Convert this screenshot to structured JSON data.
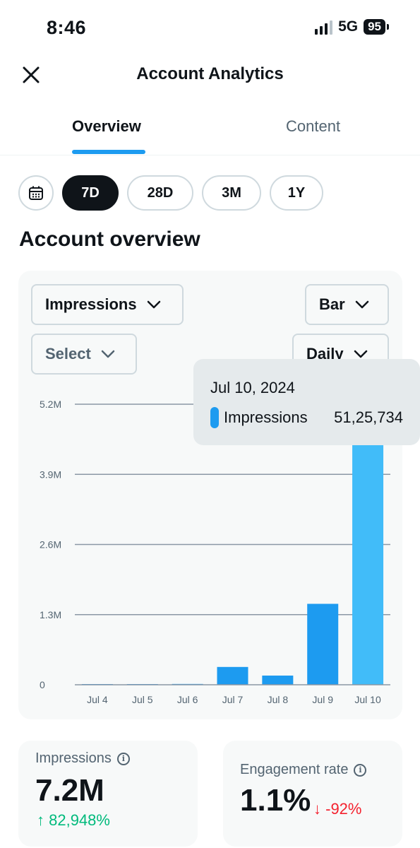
{
  "status": {
    "time": "8:46",
    "network": "5G",
    "battery": "95"
  },
  "header": {
    "title": "Account Analytics",
    "close_icon": "close-icon"
  },
  "tabs": [
    {
      "label": "Overview",
      "active": true
    },
    {
      "label": "Content",
      "active": false
    }
  ],
  "range_chips": [
    {
      "label": "7D",
      "active": true
    },
    {
      "label": "28D",
      "active": false
    },
    {
      "label": "3M",
      "active": false
    },
    {
      "label": "1Y",
      "active": false
    }
  ],
  "section_title": "Account overview",
  "controls": {
    "metric": "Impressions",
    "chart_type": "Bar",
    "compare": "Select",
    "interval": "Daily"
  },
  "chart_data": {
    "type": "bar",
    "categories": [
      "Jul 4",
      "Jul 5",
      "Jul 6",
      "Jul 7",
      "Jul 8",
      "Jul 9",
      "Jul 10"
    ],
    "series": [
      {
        "name": "Impressions",
        "values": [
          3000,
          4000,
          15000,
          330000,
          170000,
          1500000,
          5125734
        ]
      }
    ],
    "y_ticks": [
      "0",
      "1.3M",
      "2.6M",
      "3.9M",
      "5.2M"
    ],
    "y_tick_values": [
      0,
      1300000,
      2600000,
      3900000,
      5200000
    ],
    "ylim": [
      0,
      5200000
    ],
    "grid": true,
    "colors": {
      "bar": "#1d9bf0",
      "bar_highlight": "#41bcf9",
      "grid": "#8b98a5"
    }
  },
  "tooltip": {
    "date": "Jul 10, 2024",
    "series": "Impressions",
    "value": "51,25,734"
  },
  "metrics": {
    "impressions": {
      "label": "Impressions",
      "value": "7.2M",
      "change": "↑ 82,948%",
      "trend": "up"
    },
    "engagement": {
      "label": "Engagement rate",
      "value": "1.1%",
      "change": "↓ -92%",
      "trend": "down"
    }
  },
  "colors": {
    "accent": "#1d9bf0",
    "positive": "#00ba7c",
    "negative": "#f4212e"
  }
}
